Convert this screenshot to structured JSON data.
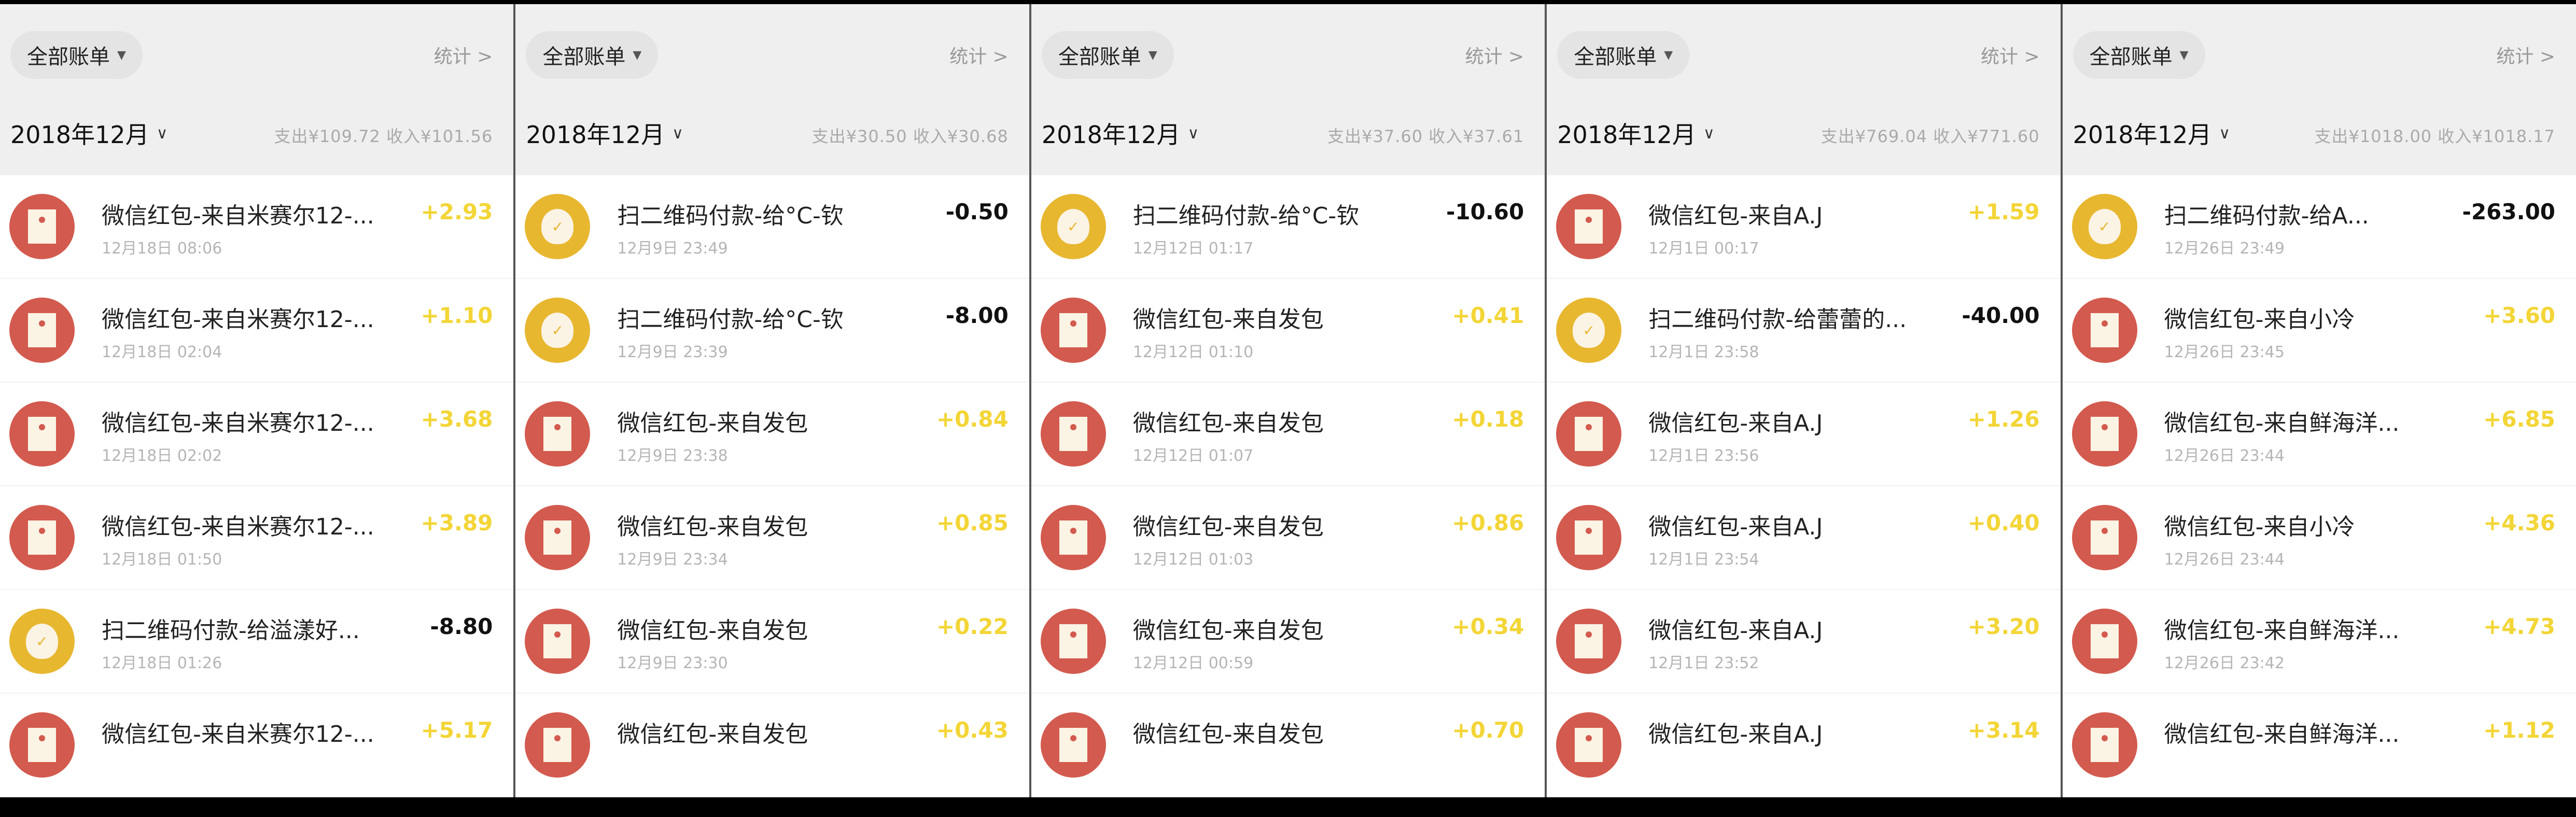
{
  "labels": {
    "filter": "全部账单",
    "stats": "统计 >",
    "month": "2018年12月"
  },
  "colors": {
    "red_packet": "#d35a4e",
    "payment": "#e8b730",
    "income": "#f3d536"
  },
  "panels": [
    {
      "summary": "支出¥109.72 收入¥101.56",
      "rows": [
        {
          "icon": "red-packet-icon",
          "title": "微信红包-来自米赛尔12-...",
          "date": "12月18日 08:06",
          "amount": "+2.93"
        },
        {
          "icon": "red-packet-icon",
          "title": "微信红包-来自米赛尔12-...",
          "date": "12月18日 02:04",
          "amount": "+1.10"
        },
        {
          "icon": "red-packet-icon",
          "title": "微信红包-来自米赛尔12-...",
          "date": "12月18日 02:02",
          "amount": "+3.68"
        },
        {
          "icon": "red-packet-icon",
          "title": "微信红包-来自米赛尔12-...",
          "date": "12月18日 01:50",
          "amount": "+3.89"
        },
        {
          "icon": "money-bag-icon",
          "title": "扫二维码付款-给溢漾好...",
          "date": "12月18日 01:26",
          "amount": "-8.80"
        },
        {
          "icon": "red-packet-icon",
          "title": "微信红包-来自米赛尔12-...",
          "date": "",
          "amount": "+5.17"
        }
      ]
    },
    {
      "summary": "支出¥30.50 收入¥30.68",
      "rows": [
        {
          "icon": "money-bag-icon",
          "title": "扫二维码付款-给°C-钦",
          "date": "12月9日 23:49",
          "amount": "-0.50"
        },
        {
          "icon": "money-bag-icon",
          "title": "扫二维码付款-给°C-钦",
          "date": "12月9日 23:39",
          "amount": "-8.00"
        },
        {
          "icon": "red-packet-icon",
          "title": "微信红包-来自发包",
          "date": "12月9日 23:38",
          "amount": "+0.84"
        },
        {
          "icon": "red-packet-icon",
          "title": "微信红包-来自发包",
          "date": "12月9日 23:34",
          "amount": "+0.85"
        },
        {
          "icon": "red-packet-icon",
          "title": "微信红包-来自发包",
          "date": "12月9日 23:30",
          "amount": "+0.22"
        },
        {
          "icon": "red-packet-icon",
          "title": "微信红包-来自发包",
          "date": "",
          "amount": "+0.43"
        }
      ]
    },
    {
      "summary": "支出¥37.60 收入¥37.61",
      "rows": [
        {
          "icon": "money-bag-icon",
          "title": "扫二维码付款-给°C-钦",
          "date": "12月12日 01:17",
          "amount": "-10.60"
        },
        {
          "icon": "red-packet-icon",
          "title": "微信红包-来自发包",
          "date": "12月12日 01:10",
          "amount": "+0.41"
        },
        {
          "icon": "red-packet-icon",
          "title": "微信红包-来自发包",
          "date": "12月12日 01:07",
          "amount": "+0.18"
        },
        {
          "icon": "red-packet-icon",
          "title": "微信红包-来自发包",
          "date": "12月12日 01:03",
          "amount": "+0.86"
        },
        {
          "icon": "red-packet-icon",
          "title": "微信红包-来自发包",
          "date": "12月12日 00:59",
          "amount": "+0.34"
        },
        {
          "icon": "red-packet-icon",
          "title": "微信红包-来自发包",
          "date": "",
          "amount": "+0.70"
        }
      ]
    },
    {
      "summary": "支出¥769.04 收入¥771.60",
      "rows": [
        {
          "icon": "red-packet-icon",
          "title": "微信红包-来自A.J",
          "date": "12月1日 00:17",
          "amount": "+1.59"
        },
        {
          "icon": "money-bag-icon",
          "title": "扫二维码付款-给蕾蕾的...",
          "date": "12月1日 23:58",
          "amount": "-40.00"
        },
        {
          "icon": "red-packet-icon",
          "title": "微信红包-来自A.J",
          "date": "12月1日 23:56",
          "amount": "+1.26"
        },
        {
          "icon": "red-packet-icon",
          "title": "微信红包-来自A.J",
          "date": "12月1日 23:54",
          "amount": "+0.40"
        },
        {
          "icon": "red-packet-icon",
          "title": "微信红包-来自A.J",
          "date": "12月1日 23:52",
          "amount": "+3.20"
        },
        {
          "icon": "red-packet-icon",
          "title": "微信红包-来自A.J",
          "date": "",
          "amount": "+3.14"
        }
      ]
    },
    {
      "summary": "支出¥1018.00 收入¥1018.17",
      "rows": [
        {
          "icon": "money-bag-icon",
          "title": "扫二维码付款-给A...",
          "date": "12月26日 23:49",
          "amount": "-263.00"
        },
        {
          "icon": "red-packet-icon",
          "title": "微信红包-来自小冷",
          "date": "12月26日 23:45",
          "amount": "+3.60"
        },
        {
          "icon": "red-packet-icon",
          "title": "微信红包-来自鲜海洋...",
          "date": "12月26日 23:44",
          "amount": "+6.85"
        },
        {
          "icon": "red-packet-icon",
          "title": "微信红包-来自小冷",
          "date": "12月26日 23:44",
          "amount": "+4.36"
        },
        {
          "icon": "red-packet-icon",
          "title": "微信红包-来自鲜海洋...",
          "date": "12月26日 23:42",
          "amount": "+4.73"
        },
        {
          "icon": "red-packet-icon",
          "title": "微信红包-来自鲜海洋...",
          "date": "",
          "amount": "+1.12"
        }
      ]
    }
  ]
}
